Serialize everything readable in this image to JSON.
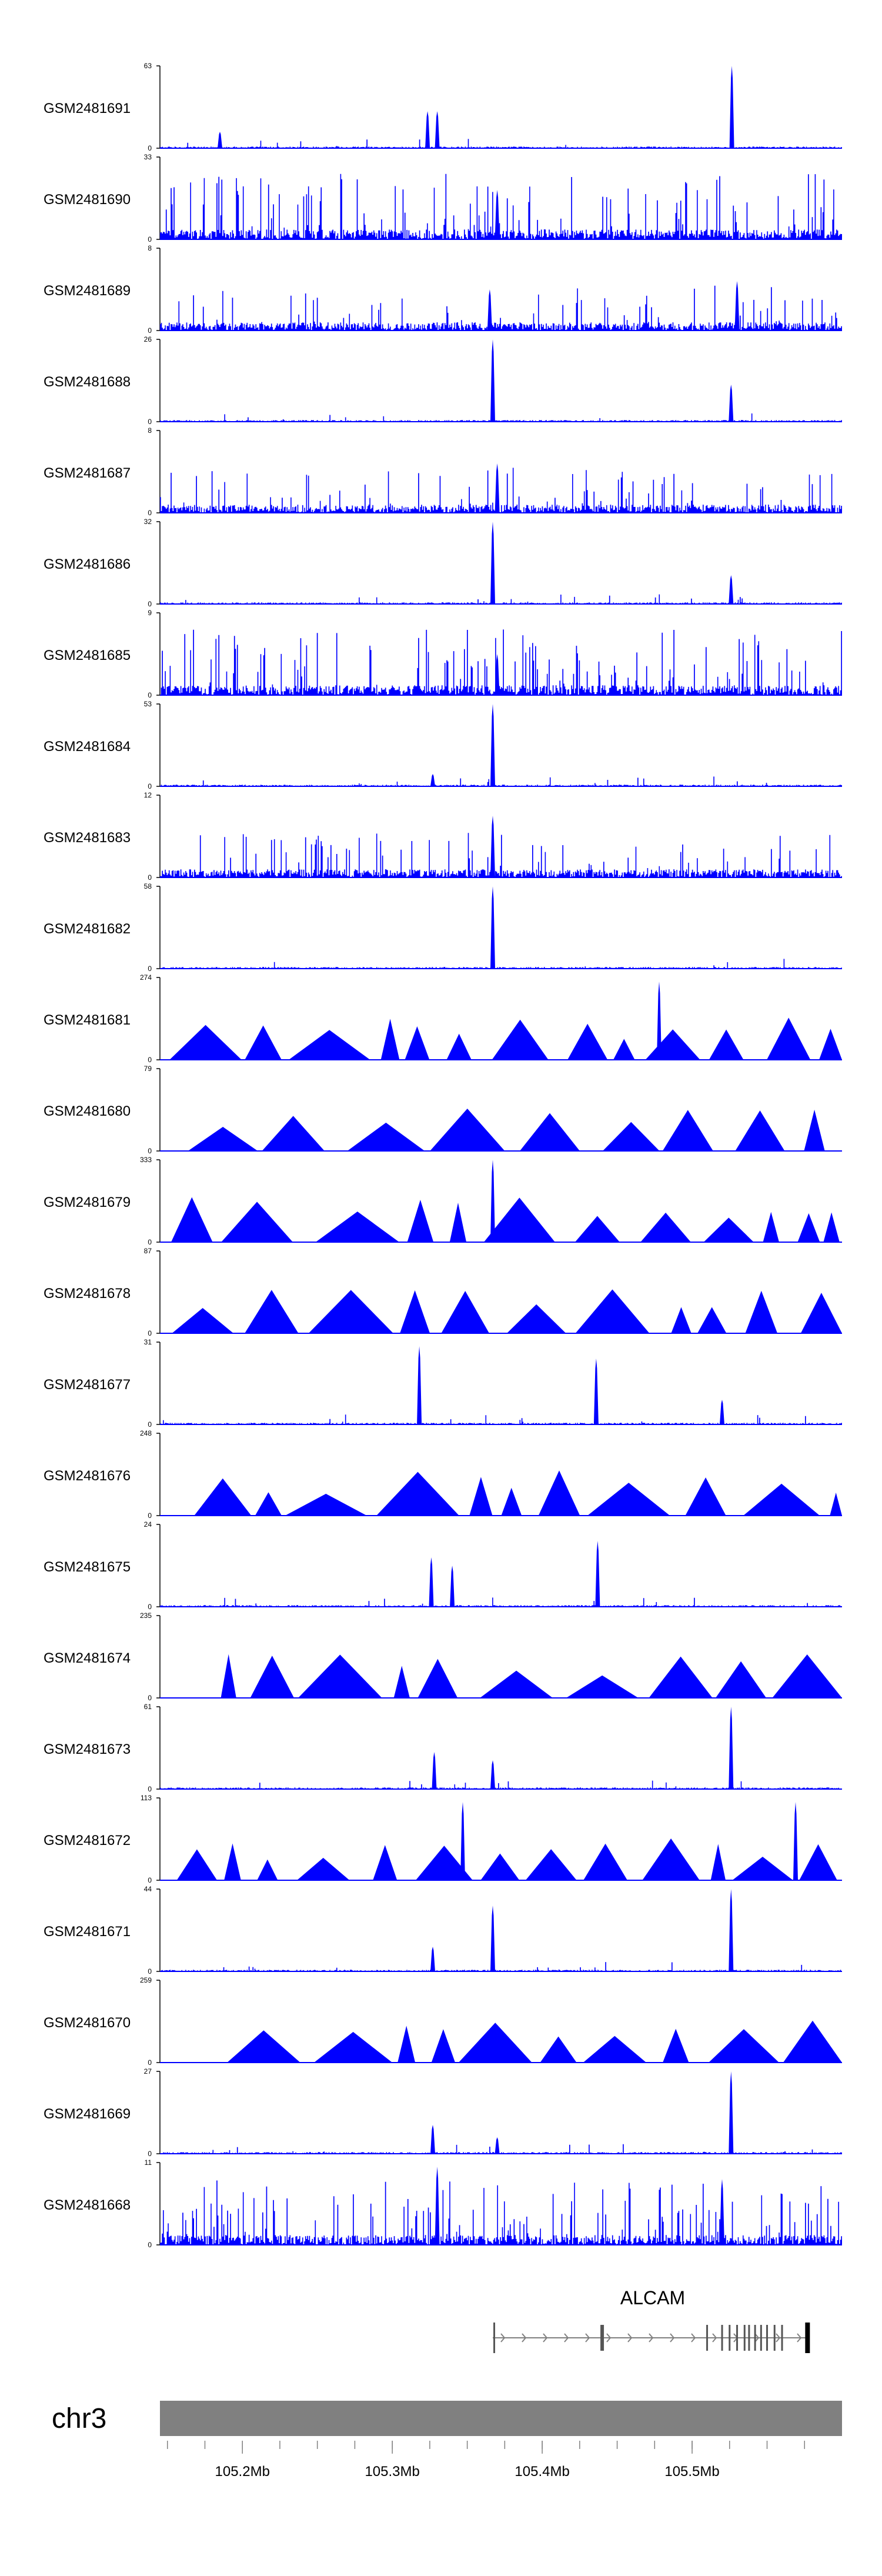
{
  "chart_data": {
    "type": "area",
    "chromosome": "chr3",
    "x_range": [
      105.145,
      105.6
    ],
    "x_ticks": [
      {
        "value": 105.2,
        "label": "105.2Mb"
      },
      {
        "value": 105.3,
        "label": "105.3Mb"
      },
      {
        "value": 105.4,
        "label": "105.4Mb"
      },
      {
        "value": 105.5,
        "label": "105.5Mb"
      }
    ],
    "fill_color": "#0000ff",
    "gene": {
      "name": "ALCAM",
      "start": 105.367,
      "end": 105.578,
      "strand": "+",
      "exons": [
        105.368,
        105.44,
        105.51,
        105.52,
        105.525,
        105.53,
        105.535,
        105.538,
        105.542,
        105.546,
        105.55,
        105.555,
        105.56,
        105.577
      ]
    },
    "tracks": [
      {
        "name": "GSM2481691",
        "ymax": "63",
        "peaks": [
          [
            105.185,
            0.2
          ],
          [
            105.3235,
            0.45
          ],
          [
            105.33,
            0.45
          ],
          [
            105.5265,
            1.0
          ]
        ]
      },
      {
        "name": "GSM2481690",
        "ymax": "33",
        "peaks": [
          [
            105.37,
            0.6
          ]
        ]
      },
      {
        "name": "GSM2481689",
        "ymax": "8",
        "peaks": [
          [
            105.365,
            0.5
          ],
          [
            105.53,
            0.6
          ]
        ]
      },
      {
        "name": "GSM2481688",
        "ymax": "26",
        "peaks": [
          [
            105.367,
            1.0
          ],
          [
            105.526,
            0.45
          ]
        ]
      },
      {
        "name": "GSM2481687",
        "ymax": "8",
        "peaks": [
          [
            105.37,
            0.6
          ]
        ]
      },
      {
        "name": "GSM2481686",
        "ymax": "32",
        "peaks": [
          [
            105.367,
            1.0
          ],
          [
            105.526,
            0.35
          ]
        ]
      },
      {
        "name": "GSM2481685",
        "ymax": "9",
        "peaks": [
          [
            105.37,
            0.5
          ]
        ]
      },
      {
        "name": "GSM2481684",
        "ymax": "53",
        "peaks": [
          [
            105.367,
            1.0
          ],
          [
            105.327,
            0.15
          ]
        ]
      },
      {
        "name": "GSM2481683",
        "ymax": "12",
        "peaks": [
          [
            105.367,
            0.75
          ]
        ]
      },
      {
        "name": "GSM2481682",
        "ymax": "58",
        "peaks": [
          [
            105.367,
            1.0
          ]
        ]
      },
      {
        "name": "GSM2481681",
        "ymax": "274",
        "peaks": [
          [
            105.478,
            0.95
          ]
        ]
      },
      {
        "name": "GSM2481680",
        "ymax": "79",
        "peaks": []
      },
      {
        "name": "GSM2481679",
        "ymax": "333",
        "peaks": [
          [
            105.367,
            1.0
          ]
        ]
      },
      {
        "name": "GSM2481678",
        "ymax": "87",
        "peaks": []
      },
      {
        "name": "GSM2481677",
        "ymax": "31",
        "peaks": [
          [
            105.318,
            0.95
          ],
          [
            105.436,
            0.8
          ],
          [
            105.52,
            0.3
          ]
        ]
      },
      {
        "name": "GSM2481676",
        "ymax": "248",
        "peaks": []
      },
      {
        "name": "GSM2481675",
        "ymax": "24",
        "peaks": [
          [
            105.437,
            0.8
          ],
          [
            105.326,
            0.6
          ],
          [
            105.34,
            0.5
          ]
        ]
      },
      {
        "name": "GSM2481674",
        "ymax": "235",
        "peaks": []
      },
      {
        "name": "GSM2481673",
        "ymax": "61",
        "peaks": [
          [
            105.526,
            1.0
          ],
          [
            105.328,
            0.45
          ],
          [
            105.367,
            0.35
          ]
        ]
      },
      {
        "name": "GSM2481672",
        "ymax": "113",
        "peaks": [
          [
            105.347,
            0.95
          ],
          [
            105.569,
            0.95
          ]
        ]
      },
      {
        "name": "GSM2481671",
        "ymax": "44",
        "peaks": [
          [
            105.526,
            1.0
          ],
          [
            105.367,
            0.8
          ],
          [
            105.327,
            0.3
          ]
        ]
      },
      {
        "name": "GSM2481670",
        "ymax": "259",
        "peaks": []
      },
      {
        "name": "GSM2481669",
        "ymax": "27",
        "peaks": [
          [
            105.526,
            1.0
          ],
          [
            105.327,
            0.35
          ],
          [
            105.37,
            0.2
          ]
        ]
      },
      {
        "name": "GSM2481668",
        "ymax": "11",
        "peaks": [
          [
            105.33,
            0.95
          ],
          [
            105.52,
            0.8
          ]
        ]
      }
    ]
  }
}
